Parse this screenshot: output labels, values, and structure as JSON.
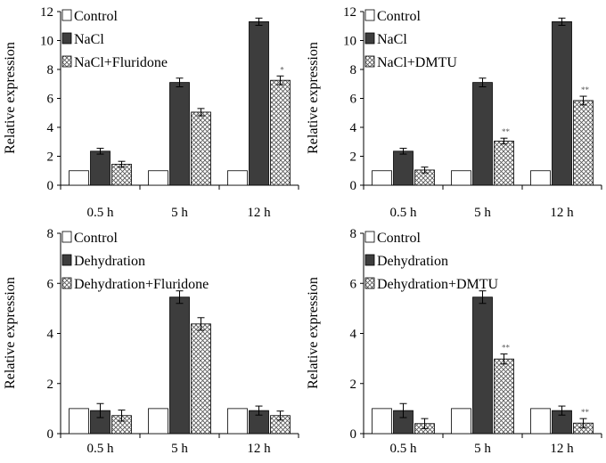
{
  "chart_data": [
    {
      "type": "bar",
      "panel": "top-left",
      "ylabel": "Relative expression",
      "ylim": [
        0,
        12
      ],
      "yticks": [
        0,
        2,
        4,
        6,
        8,
        10,
        12
      ],
      "categories": [
        "0.5 h",
        "5 h",
        "12 h"
      ],
      "series": [
        {
          "name": "Control",
          "pattern": "white",
          "values": [
            1,
            1,
            1
          ],
          "errors": [
            0,
            0,
            0
          ],
          "sig": [
            "",
            "",
            ""
          ]
        },
        {
          "name": "NaCl",
          "pattern": "dark",
          "values": [
            2.35,
            7.1,
            11.3
          ],
          "errors": [
            0.2,
            0.3,
            0.25
          ],
          "sig": [
            "",
            "",
            ""
          ]
        },
        {
          "name": "NaCl+Fluridone",
          "pattern": "hatch",
          "values": [
            1.45,
            5.05,
            7.25
          ],
          "errors": [
            0.2,
            0.25,
            0.3
          ],
          "sig": [
            "",
            "",
            "*"
          ]
        }
      ],
      "legend_position": "top-left"
    },
    {
      "type": "bar",
      "panel": "top-right",
      "ylabel": "Relative expression",
      "ylim": [
        0,
        12
      ],
      "yticks": [
        0,
        2,
        4,
        6,
        8,
        10,
        12
      ],
      "categories": [
        "0.5 h",
        "5 h",
        "12 h"
      ],
      "series": [
        {
          "name": "Control",
          "pattern": "white",
          "values": [
            1,
            1,
            1
          ],
          "errors": [
            0,
            0,
            0
          ],
          "sig": [
            "",
            "",
            ""
          ]
        },
        {
          "name": "NaCl",
          "pattern": "dark",
          "values": [
            2.35,
            7.1,
            11.3
          ],
          "errors": [
            0.2,
            0.3,
            0.25
          ],
          "sig": [
            "",
            "",
            ""
          ]
        },
        {
          "name": "NaCl+DMTU",
          "pattern": "hatch",
          "values": [
            1.05,
            3.05,
            5.85
          ],
          "errors": [
            0.2,
            0.2,
            0.3
          ],
          "sig": [
            "",
            "**",
            "**"
          ]
        }
      ],
      "legend_position": "top-left"
    },
    {
      "type": "bar",
      "panel": "bottom-left",
      "ylabel": "Relative expression",
      "ylim": [
        0,
        8
      ],
      "yticks": [
        0,
        2,
        4,
        6,
        8
      ],
      "categories": [
        "0.5 h",
        "5 h",
        "12 h"
      ],
      "series": [
        {
          "name": "Control",
          "pattern": "white",
          "values": [
            1,
            1,
            1
          ],
          "errors": [
            0,
            0,
            0
          ],
          "sig": [
            "",
            "",
            ""
          ]
        },
        {
          "name": "Dehydration",
          "pattern": "dark",
          "values": [
            0.92,
            5.45,
            0.92
          ],
          "errors": [
            0.28,
            0.25,
            0.18
          ],
          "sig": [
            "",
            "",
            ""
          ]
        },
        {
          "name": "Dehydration+Fluridone",
          "pattern": "hatch",
          "values": [
            0.72,
            4.38,
            0.72
          ],
          "errors": [
            0.22,
            0.25,
            0.18
          ],
          "sig": [
            "",
            "",
            ""
          ]
        }
      ],
      "legend_position": "top-left"
    },
    {
      "type": "bar",
      "panel": "bottom-right",
      "ylabel": "Relative expression",
      "ylim": [
        0,
        8
      ],
      "yticks": [
        0,
        2,
        4,
        6,
        8
      ],
      "categories": [
        "0.5 h",
        "5 h",
        "12 h"
      ],
      "series": [
        {
          "name": "Control",
          "pattern": "white",
          "values": [
            1,
            1,
            1
          ],
          "errors": [
            0,
            0,
            0
          ],
          "sig": [
            "",
            "",
            ""
          ]
        },
        {
          "name": "Dehydration",
          "pattern": "dark",
          "values": [
            0.92,
            5.45,
            0.92
          ],
          "errors": [
            0.28,
            0.25,
            0.18
          ],
          "sig": [
            "",
            "",
            ""
          ]
        },
        {
          "name": "Dehydration+DMTU",
          "pattern": "hatch",
          "values": [
            0.4,
            2.98,
            0.42
          ],
          "errors": [
            0.2,
            0.2,
            0.18
          ],
          "sig": [
            "",
            "**",
            "**"
          ]
        }
      ],
      "legend_position": "top-left"
    }
  ]
}
